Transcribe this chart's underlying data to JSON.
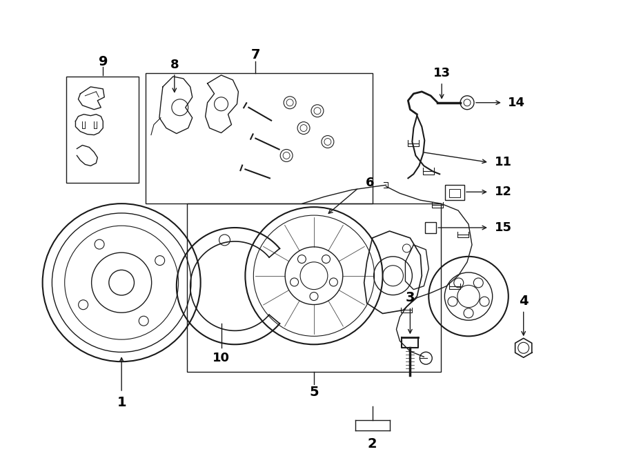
{
  "bg_color": "#ffffff",
  "line_color": "#1a1a1a",
  "fig_width": 9.0,
  "fig_height": 6.61,
  "font_size": 13
}
